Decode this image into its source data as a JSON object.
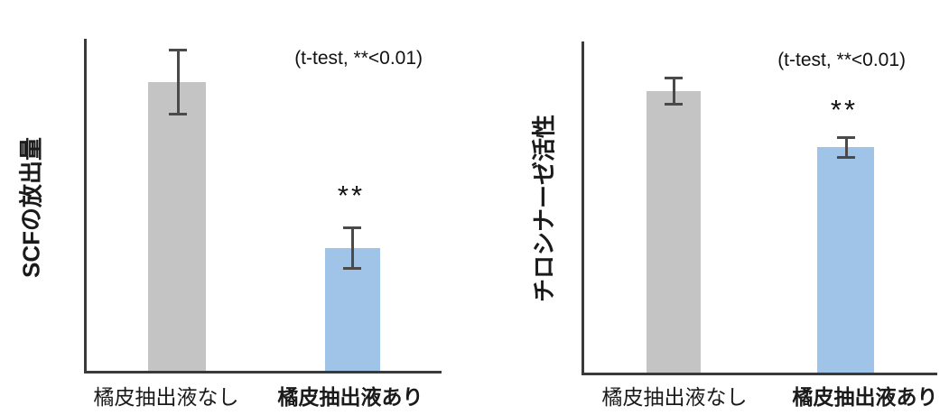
{
  "colors": {
    "bar_gray": "#c4c4c4",
    "bar_blue": "#a0c4e8",
    "axis": "#3a3a3a",
    "error_bar": "#4a4a4a",
    "text": "#1a1a1a"
  },
  "chart_data": [
    {
      "type": "bar",
      "title": "",
      "ylabel": "SCFの放出量",
      "xlabel": "",
      "categories": [
        "橘皮抽出液なし",
        "橘皮抽出液あり"
      ],
      "values": [
        0.87,
        0.37
      ],
      "errors": [
        0.1,
        0.065
      ],
      "ylim": [
        0,
        1
      ],
      "value_scale": "relative fraction of y-axis height (no numeric ticks shown)",
      "bar_colors": [
        "#c4c4c4",
        "#a0c4e8"
      ],
      "annotation": "(t-test, **<0.01)",
      "significance": {
        "category": "橘皮抽出液あり",
        "marker": "**"
      },
      "grid": false,
      "legend": false
    },
    {
      "type": "bar",
      "title": "",
      "ylabel": "チロシナーゼ活性",
      "xlabel": "",
      "categories": [
        "橘皮抽出液なし",
        "橘皮抽出液あり"
      ],
      "values": [
        0.85,
        0.68
      ],
      "errors": [
        0.044,
        0.034
      ],
      "ylim": [
        0,
        1
      ],
      "value_scale": "relative fraction of y-axis height (no numeric ticks shown)",
      "bar_colors": [
        "#c4c4c4",
        "#a0c4e8"
      ],
      "annotation": "(t-test, **<0.01)",
      "significance": {
        "category": "橘皮抽出液あり",
        "marker": "**"
      },
      "grid": false,
      "legend": false
    }
  ]
}
